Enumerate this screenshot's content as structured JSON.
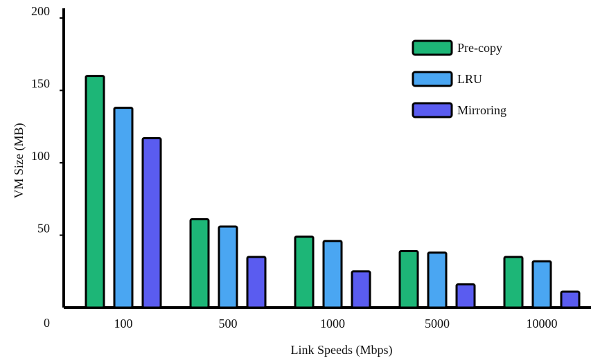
{
  "chart_data": {
    "type": "bar",
    "categories": [
      "100",
      "500",
      "1000",
      "5000",
      "10000"
    ],
    "series": [
      {
        "name": "Pre-copy",
        "color": "#1db677",
        "values": [
          160,
          61,
          49,
          39,
          35
        ]
      },
      {
        "name": "LRU",
        "color": "#4aa6f2",
        "values": [
          138,
          56,
          46,
          38,
          32
        ]
      },
      {
        "name": "Mirroring",
        "color": "#5a5cf0",
        "values": [
          117,
          35,
          25,
          16,
          11
        ]
      }
    ],
    "xlabel": "Link Speeds (Mbps)",
    "ylabel": "VM Size (MB)",
    "ylim": [
      0,
      200
    ],
    "yticks": [
      "0",
      "50",
      "100",
      "150",
      "200"
    ],
    "grid": false,
    "legend": "top-right"
  }
}
